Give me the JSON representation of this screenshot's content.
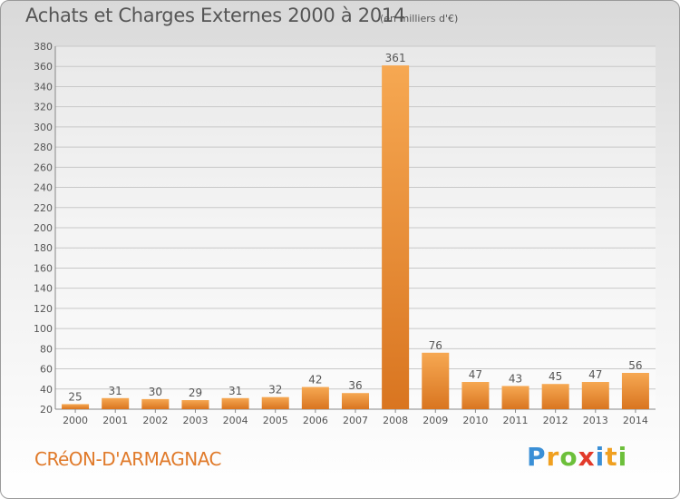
{
  "header": {
    "title": "Achats et Charges Externes 2000 à 2014",
    "unit": "(en milliers d'€)"
  },
  "footer": {
    "commune": "CRéON-D'ARMAGNAC",
    "logo_letters": [
      {
        "ch": "P",
        "color": "#3a8fd6"
      },
      {
        "ch": "r",
        "color": "#f0a020"
      },
      {
        "ch": "o",
        "color": "#6cbf3a"
      },
      {
        "ch": "x",
        "color": "#e23a2a"
      },
      {
        "ch": "i",
        "color": "#3a8fd6"
      },
      {
        "ch": "t",
        "color": "#f0a020"
      },
      {
        "ch": "i",
        "color": "#6cbf3a"
      }
    ]
  },
  "colors": {
    "bar_light": "#f6a852",
    "bar_dark": "#d97520",
    "grid": "#c8c8c8",
    "text": "#555555",
    "commune": "#e07a2a"
  },
  "chart_data": {
    "type": "bar",
    "categories": [
      "2000",
      "2001",
      "2002",
      "2003",
      "2004",
      "2005",
      "2006",
      "2007",
      "2008",
      "2009",
      "2010",
      "2011",
      "2012",
      "2013",
      "2014"
    ],
    "values": [
      25,
      31,
      30,
      29,
      31,
      32,
      42,
      36,
      361,
      76,
      47,
      43,
      45,
      47,
      56
    ],
    "title": "Achats et Charges Externes 2000 à 2014",
    "ylim": [
      20,
      380
    ],
    "yticks": [
      20,
      40,
      60,
      80,
      100,
      120,
      140,
      160,
      180,
      200,
      220,
      240,
      260,
      280,
      300,
      320,
      340,
      360,
      380
    ],
    "grid": true,
    "data_labels": true
  }
}
